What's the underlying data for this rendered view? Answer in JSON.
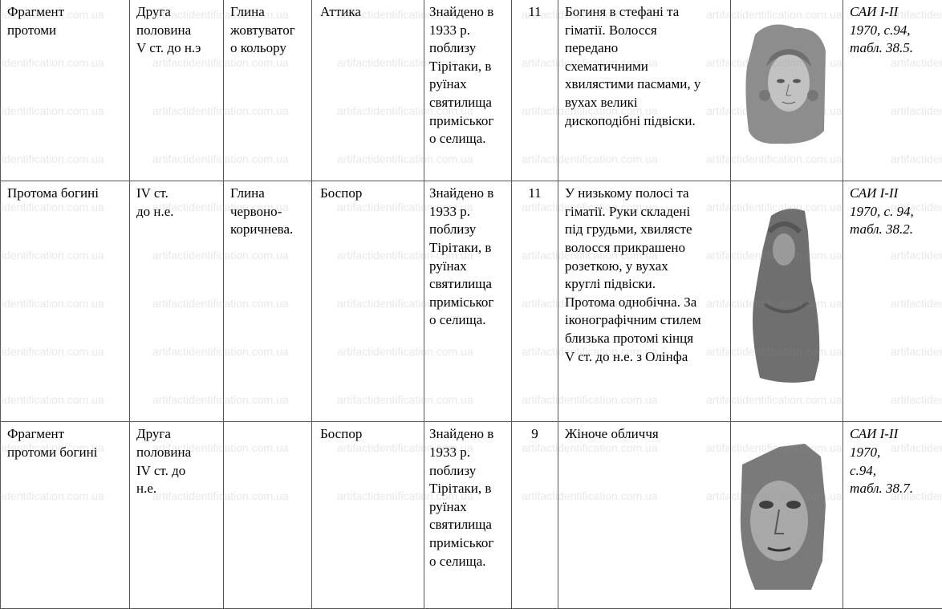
{
  "watermark": "artifactidentification.com.ua",
  "rows": [
    {
      "name": "Фрагмент\nпротоми",
      "date": "Друга\nполовина\nV ст. до н.э",
      "material": "Глина\nжовтуватог\nо кольору",
      "origin": "Аттика",
      "find": "Знайдено в\n1933 р.\nпоблизу\nТірітаки, в\nруїнах\nсвятилища\nприміськог\nо селища.",
      "size": "11",
      "description": "Богиня в стефані та\nгіматії. Волосся\nпередано\nсхематичними\nхвилястими пасмами, у\nвухах великі\nдископодібні підвіски.",
      "image": "terracotta-protome-goddess-head",
      "reference": "САИ I-II\n1970, с.94,\nтабл. 38.5."
    },
    {
      "name": "Протома богині",
      "date": "IV ст.\nдо н.е.",
      "material": "Глина\nчервоно-\nкоричнева.",
      "origin": "Боспор",
      "find": "Знайдено в\n1933 р.\nпоблизу\nТірітаки, в\nруїнах\nсвятилища\nприміськог\nо селища.",
      "size": "11",
      "description": "У низькому полосі та\nгіматії. Руки складені\nпід грудьми, хвилясте\nволосся прикрашено\nрозеткою, у вухах\nкруглі підвіски.\nПротома однобічна. За\nіконографічним стилем\nблизька протомі кінця\nV ст. до н.е. з Олінфа",
      "image": "terracotta-protome-goddess-bust",
      "reference": "САИ I-II\n1970, с. 94,\nтабл. 38.2."
    },
    {
      "name": "Фрагмент\nпротоми богині",
      "date": "Друга\nполовина\nIV ст. до\nн.е.",
      "material": "",
      "origin": "Боспор",
      "find": "Знайдено в\n1933 р.\nпоблизу\nТірітаки, в\nруїнах\nсвятилища\nприміськог\nо селища.",
      "size": "9",
      "description": "Жіноче обличчя",
      "image": "terracotta-female-face-fragment",
      "reference": "САИ I-II\n1970,\nс.94,\nтабл. 38.7."
    }
  ]
}
